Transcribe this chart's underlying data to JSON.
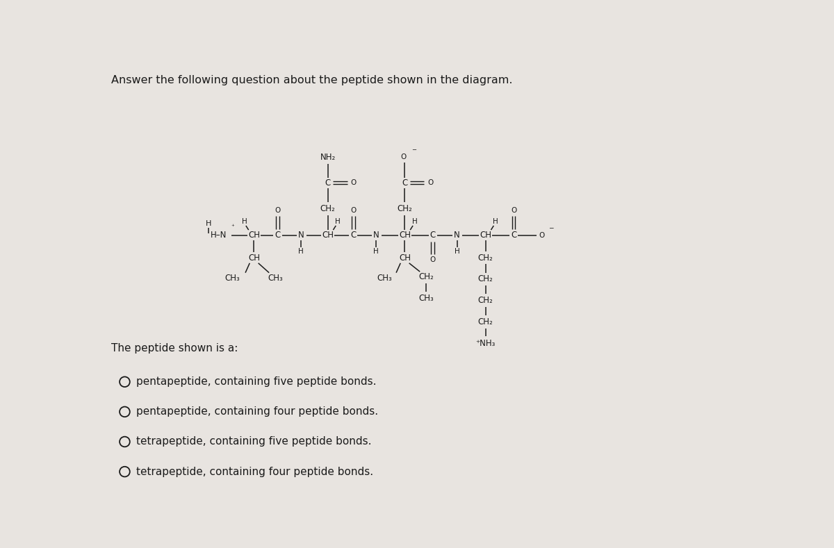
{
  "title": "Answer the following question about the peptide shown in the diagram.",
  "bg_color": "#e8e4e0",
  "text_color": "#1a1a1a",
  "question": "The peptide shown is a:",
  "options": [
    "pentapeptide, containing five peptide bonds.",
    "pentapeptide, containing four peptide bonds.",
    "tetrapeptide, containing five peptide bonds.",
    "tetrapeptide, containing four peptide bonds."
  ],
  "title_fontsize": 11.5,
  "label_fontsize": 8.5,
  "option_fontsize": 11
}
